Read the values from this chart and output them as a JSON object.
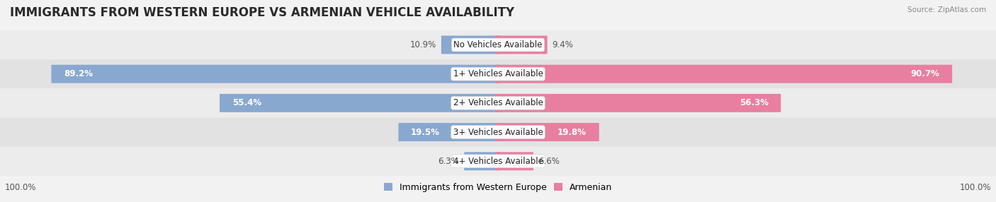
{
  "title": "IMMIGRANTS FROM WESTERN EUROPE VS ARMENIAN VEHICLE AVAILABILITY",
  "source": "Source: ZipAtlas.com",
  "categories": [
    "No Vehicles Available",
    "1+ Vehicles Available",
    "2+ Vehicles Available",
    "3+ Vehicles Available",
    "4+ Vehicles Available"
  ],
  "western_europe": [
    10.9,
    89.2,
    55.4,
    19.5,
    6.3
  ],
  "armenian": [
    9.4,
    90.7,
    56.3,
    19.8,
    6.6
  ],
  "western_color": "#89A8D0",
  "armenian_color": "#E87FA0",
  "bg_color": "#f2f2f2",
  "row_colors": [
    "#ececec",
    "#e2e2e2"
  ],
  "bar_height": 0.62,
  "max_val": 100.0,
  "title_fontsize": 12,
  "label_fontsize": 8.5,
  "cat_fontsize": 8.5,
  "legend_fontsize": 9,
  "value_color_inside": "white",
  "value_color_outside": "#555555"
}
